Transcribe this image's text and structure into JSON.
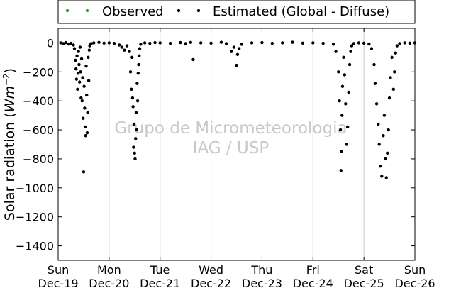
{
  "chart_data": {
    "type": "scatter",
    "title": "",
    "xlabel": "",
    "ylabel": "Solar radiation (Wm^-2)",
    "ylabel_text": "Solar radiation (",
    "ylabel_unit": "Wm",
    "ylabel_exp": "−2",
    "ylabel_close": ")",
    "ylim": [
      -1500,
      100
    ],
    "xlim": [
      0,
      7
    ],
    "yticks": [
      0,
      -200,
      -400,
      -600,
      -800,
      -1000,
      -1200,
      -1400
    ],
    "ytick_labels": [
      "0",
      "−200",
      "−400",
      "−600",
      "−800",
      "−1000",
      "−1200",
      "−1400"
    ],
    "xticks": [
      {
        "x": 0,
        "day": "Sun",
        "date": "Dec-19"
      },
      {
        "x": 1,
        "day": "Mon",
        "date": "Dec-20"
      },
      {
        "x": 2,
        "day": "Tue",
        "date": "Dec-21"
      },
      {
        "x": 3,
        "day": "Wed",
        "date": "Dec-22"
      },
      {
        "x": 4,
        "day": "Thu",
        "date": "Dec-23"
      },
      {
        "x": 5,
        "day": "Fri",
        "date": "Dec-24"
      },
      {
        "x": 6,
        "day": "Sat",
        "date": "Dec-25"
      },
      {
        "x": 7,
        "day": "Sun",
        "date": "Dec-26"
      }
    ],
    "grid": "vertical",
    "legend_position": "top",
    "watermark": [
      "Grupo de Micrometeorologia",
      "IAG / USP"
    ],
    "colors": {
      "observed": "#2a9d2a",
      "estimated": "#000000",
      "grid": "#c8c8c8",
      "watermark": "#c8c8c8"
    },
    "series": [
      {
        "name": "Observed",
        "color": "#2a9d2a",
        "points": []
      },
      {
        "name": "Estimated (Global - Diffuse)",
        "color": "#000000",
        "points": [
          [
            0.05,
            0
          ],
          [
            0.1,
            -5
          ],
          [
            0.15,
            2
          ],
          [
            0.2,
            -8
          ],
          [
            0.25,
            -3
          ],
          [
            0.3,
            -15
          ],
          [
            0.32,
            -40
          ],
          [
            0.34,
            -120
          ],
          [
            0.35,
            -180
          ],
          [
            0.36,
            -250
          ],
          [
            0.37,
            -90
          ],
          [
            0.38,
            -320
          ],
          [
            0.39,
            -210
          ],
          [
            0.4,
            -60
          ],
          [
            0.41,
            -150
          ],
          [
            0.42,
            -270
          ],
          [
            0.43,
            -30
          ],
          [
            0.44,
            -200
          ],
          [
            0.45,
            -380
          ],
          [
            0.46,
            -110
          ],
          [
            0.47,
            -400
          ],
          [
            0.48,
            -240
          ],
          [
            0.49,
            -520
          ],
          [
            0.5,
            -890
          ],
          [
            0.51,
            -300
          ],
          [
            0.52,
            -450
          ],
          [
            0.53,
            -580
          ],
          [
            0.54,
            -640
          ],
          [
            0.55,
            -160
          ],
          [
            0.56,
            -360
          ],
          [
            0.57,
            -620
          ],
          [
            0.58,
            -480
          ],
          [
            0.59,
            -100
          ],
          [
            0.6,
            -260
          ],
          [
            0.61,
            -50
          ],
          [
            0.62,
            -20
          ],
          [
            0.63,
            -10
          ],
          [
            0.65,
            -5
          ],
          [
            0.7,
            0
          ],
          [
            0.8,
            3
          ],
          [
            0.9,
            -2
          ],
          [
            1.0,
            0
          ],
          [
            1.1,
            -4
          ],
          [
            1.2,
            -15
          ],
          [
            1.25,
            -30
          ],
          [
            1.3,
            -50
          ],
          [
            1.35,
            -20
          ],
          [
            1.4,
            -60
          ],
          [
            1.42,
            -200
          ],
          [
            1.44,
            -320
          ],
          [
            1.45,
            -100
          ],
          [
            1.46,
            -380
          ],
          [
            1.47,
            -440
          ],
          [
            1.48,
            -720
          ],
          [
            1.49,
            -560
          ],
          [
            1.5,
            -760
          ],
          [
            1.51,
            -800
          ],
          [
            1.52,
            -660
          ],
          [
            1.53,
            -480
          ],
          [
            1.54,
            -600
          ],
          [
            1.55,
            -280
          ],
          [
            1.56,
            -400
          ],
          [
            1.57,
            -210
          ],
          [
            1.58,
            -150
          ],
          [
            1.59,
            -90
          ],
          [
            1.6,
            -40
          ],
          [
            1.62,
            -10
          ],
          [
            1.7,
            0
          ],
          [
            1.8,
            -3
          ],
          [
            1.9,
            2
          ],
          [
            2.0,
            0
          ],
          [
            2.2,
            -3
          ],
          [
            2.4,
            2
          ],
          [
            2.5,
            -5
          ],
          [
            2.6,
            3
          ],
          [
            2.65,
            -115
          ],
          [
            2.8,
            0
          ],
          [
            3.0,
            -2
          ],
          [
            3.2,
            4
          ],
          [
            3.3,
            -5
          ],
          [
            3.4,
            -60
          ],
          [
            3.45,
            -30
          ],
          [
            3.5,
            -155
          ],
          [
            3.52,
            -80
          ],
          [
            3.55,
            -40
          ],
          [
            3.6,
            -10
          ],
          [
            3.8,
            0
          ],
          [
            4.0,
            2
          ],
          [
            4.2,
            -3
          ],
          [
            4.4,
            0
          ],
          [
            4.6,
            4
          ],
          [
            4.8,
            -2
          ],
          [
            5.0,
            0
          ],
          [
            5.2,
            -3
          ],
          [
            5.4,
            -10
          ],
          [
            5.45,
            -60
          ],
          [
            5.5,
            -200
          ],
          [
            5.52,
            -400
          ],
          [
            5.54,
            -600
          ],
          [
            5.55,
            -880
          ],
          [
            5.56,
            -750
          ],
          [
            5.57,
            -500
          ],
          [
            5.58,
            -300
          ],
          [
            5.6,
            -100
          ],
          [
            5.62,
            -220
          ],
          [
            5.64,
            -420
          ],
          [
            5.66,
            -700
          ],
          [
            5.68,
            -580
          ],
          [
            5.7,
            -340
          ],
          [
            5.72,
            -150
          ],
          [
            5.74,
            -60
          ],
          [
            5.76,
            -20
          ],
          [
            5.8,
            -5
          ],
          [
            5.9,
            0
          ],
          [
            6.0,
            -2
          ],
          [
            6.1,
            -8
          ],
          [
            6.15,
            -40
          ],
          [
            6.2,
            -150
          ],
          [
            6.22,
            -280
          ],
          [
            6.25,
            -420
          ],
          [
            6.28,
            -560
          ],
          [
            6.3,
            -700
          ],
          [
            6.32,
            -850
          ],
          [
            6.35,
            -920
          ],
          [
            6.38,
            -640
          ],
          [
            6.4,
            -500
          ],
          [
            6.42,
            -800
          ],
          [
            6.44,
            -930
          ],
          [
            6.46,
            -760
          ],
          [
            6.48,
            -600
          ],
          [
            6.5,
            -380
          ],
          [
            6.52,
            -240
          ],
          [
            6.55,
            -100
          ],
          [
            6.58,
            -320
          ],
          [
            6.6,
            -200
          ],
          [
            6.62,
            -70
          ],
          [
            6.65,
            -20
          ],
          [
            6.7,
            -5
          ],
          [
            6.8,
            0
          ],
          [
            6.9,
            -2
          ],
          [
            7.0,
            0
          ]
        ]
      }
    ]
  }
}
